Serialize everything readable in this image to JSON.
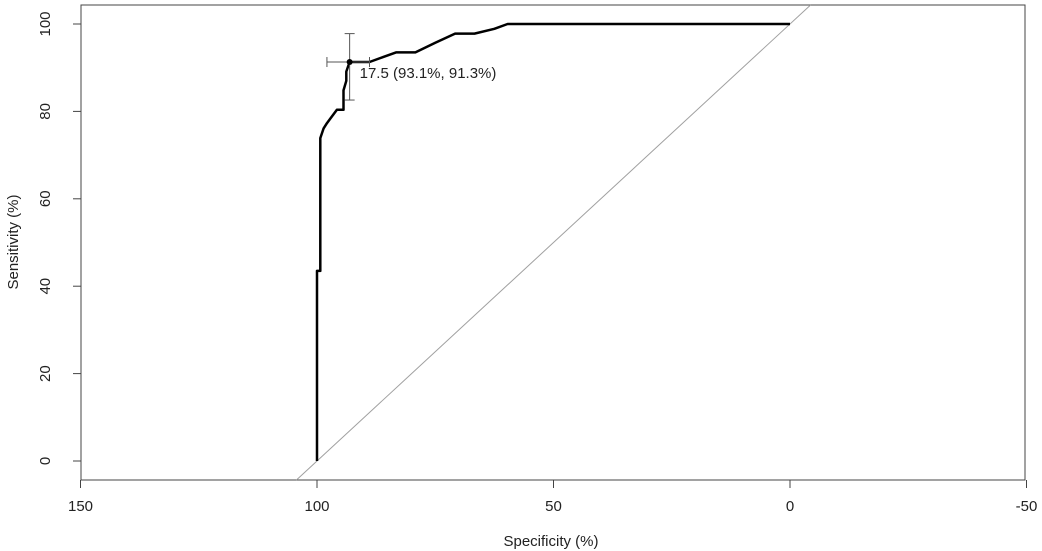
{
  "chart_data": {
    "type": "line",
    "title": "",
    "xlabel": "Specificity (%)",
    "ylabel": "Sensitivity (%)",
    "xlim": [
      150,
      -50
    ],
    "ylim": [
      0,
      100
    ],
    "x_reversed": true,
    "grid": false,
    "x_ticks": [
      150,
      100,
      50,
      0,
      -50
    ],
    "y_ticks": [
      0,
      20,
      40,
      60,
      80,
      100
    ],
    "x_tick_labels": [
      "150",
      "100",
      "50",
      "0",
      "-50"
    ],
    "y_tick_labels": [
      "0",
      "20",
      "40",
      "60",
      "80",
      "100"
    ],
    "series": [
      {
        "values_xy": [
          [
            100,
            0
          ],
          [
            100,
            43.5
          ],
          [
            99.3,
            43.5
          ],
          [
            99.3,
            73.9
          ],
          [
            98.6,
            76.1
          ],
          [
            97.9,
            77.3
          ],
          [
            97.2,
            78.3
          ],
          [
            95.8,
            80.4
          ],
          [
            94.4,
            80.4
          ],
          [
            94.4,
            84.8
          ],
          [
            93.8,
            87.0
          ],
          [
            93.8,
            89.1
          ],
          [
            93.1,
            91.3
          ],
          [
            88.9,
            91.3
          ],
          [
            86.1,
            92.4
          ],
          [
            83.3,
            93.5
          ],
          [
            79.2,
            93.5
          ],
          [
            75.0,
            95.7
          ],
          [
            70.8,
            97.8
          ],
          [
            66.7,
            97.8
          ],
          [
            62.5,
            98.9
          ],
          [
            59.7,
            100
          ],
          [
            0,
            100
          ]
        ],
        "color": "#000000"
      }
    ],
    "reference_line": {
      "from": [
        100,
        0
      ],
      "to": [
        0,
        100
      ],
      "color": "#a0a0a0"
    },
    "annotation": {
      "text": "17.5 (93.1%, 91.3%)",
      "point": [
        93.1,
        91.3
      ],
      "ci_x": [
        97.9,
        88.9
      ],
      "ci_y": [
        82.6,
        97.8
      ]
    }
  }
}
